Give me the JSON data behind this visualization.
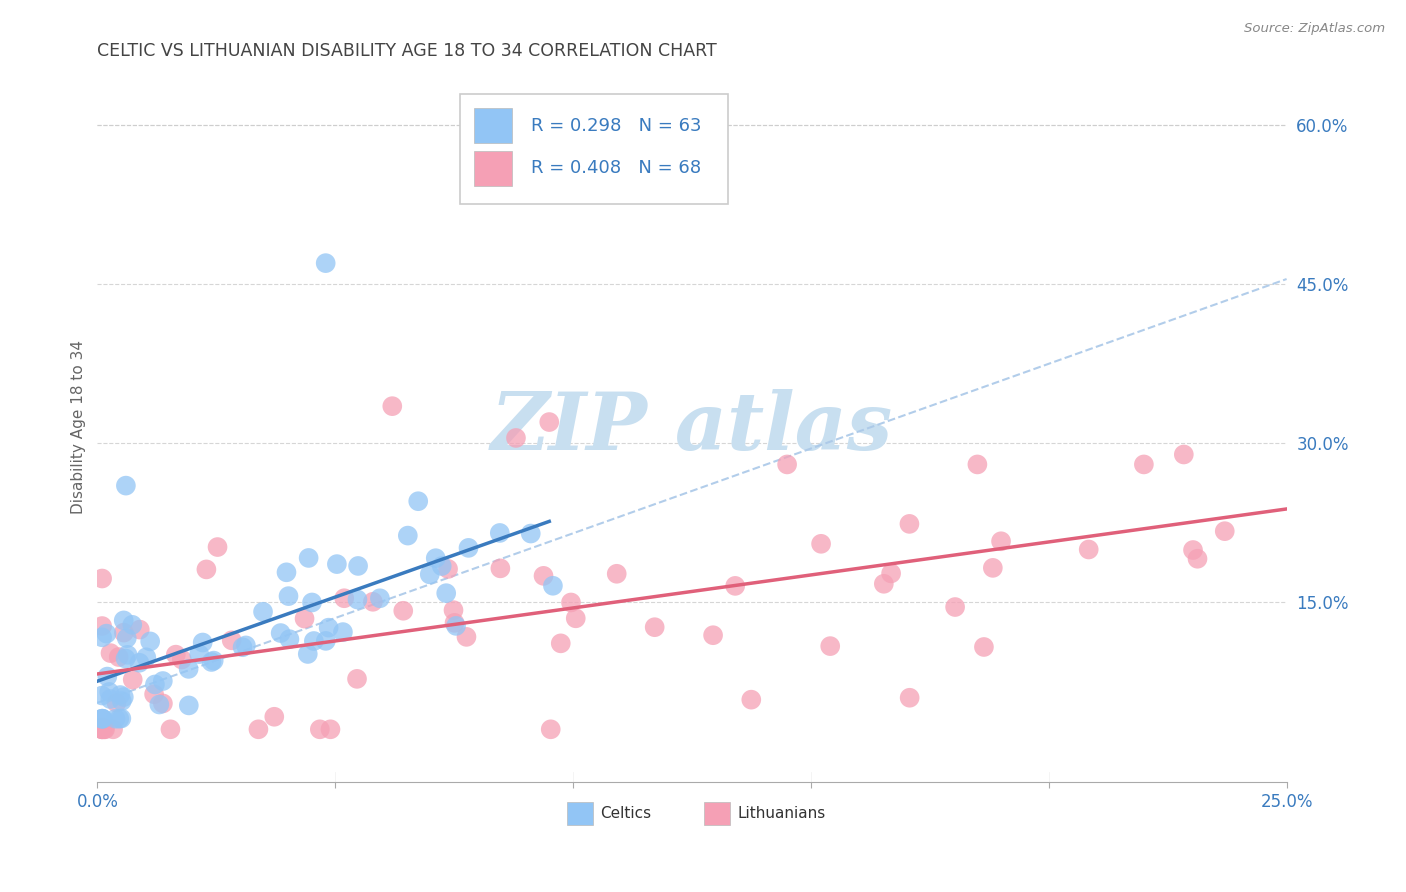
{
  "title": "CELTIC VS LITHUANIAN DISABILITY AGE 18 TO 34 CORRELATION CHART",
  "source": "Source: ZipAtlas.com",
  "ylabel": "Disability Age 18 to 34",
  "legend_celtics": "Celtics",
  "legend_lithuanians": "Lithuanians",
  "r_celtics": "R = 0.298",
  "n_celtics": "N = 63",
  "r_lithuanians": "R = 0.408",
  "n_lithuanians": "N = 68",
  "xlim": [
    0.0,
    0.25
  ],
  "ylim": [
    -0.02,
    0.65
  ],
  "color_celtics": "#92c5f5",
  "color_lithuanians": "#f5a0b5",
  "color_trendline_celtics": "#3a7bbf",
  "color_trendline_lithuanians": "#e0607a",
  "color_dashed": "#aac8e8",
  "background_color": "#ffffff",
  "text_color_blue": "#3a7bbf",
  "watermark_color": "#c8dff0",
  "grid_color": "#cccccc"
}
